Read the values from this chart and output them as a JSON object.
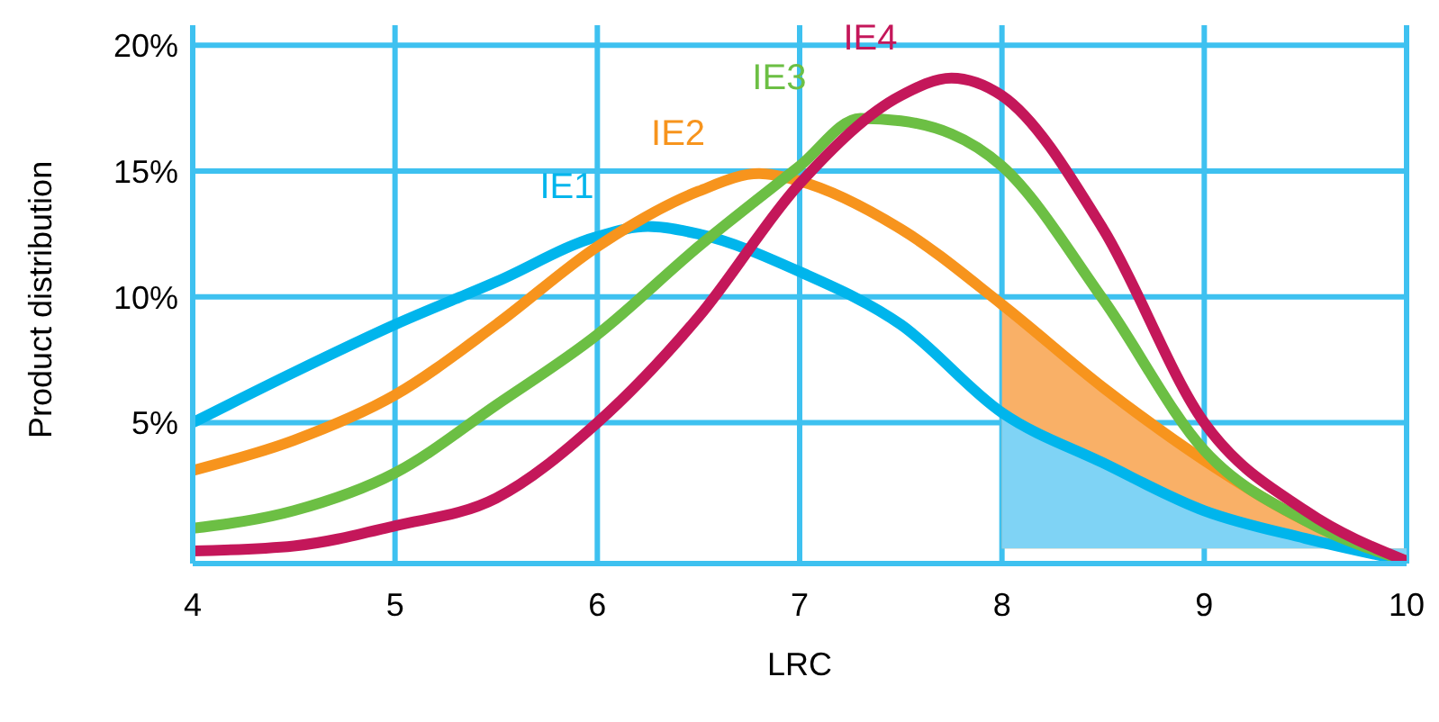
{
  "chart_data": {
    "type": "line",
    "xlabel": "LRC",
    "ylabel": "Product distribution",
    "xlim": [
      4,
      10
    ],
    "xticks": [
      4,
      5,
      6,
      7,
      8,
      9,
      10
    ],
    "ylim": [
      -0.6,
      20.8
    ],
    "yticks": [
      {
        "value": 5,
        "label": "5%"
      },
      {
        "value": 10,
        "label": "10%"
      },
      {
        "value": 15,
        "label": "15%"
      },
      {
        "value": 20,
        "label": "20%"
      }
    ],
    "grid": true,
    "legend": false,
    "marker": "none",
    "line_style": "solid",
    "series": [
      {
        "type": "area",
        "color": "#f9b067",
        "x": [
          8,
          8.5,
          9,
          9.5,
          10
        ],
        "values": [
          9.7,
          6.4,
          3.5,
          1.1,
          -0.5
        ]
      },
      {
        "type": "area",
        "color": "#7fd3f5",
        "x": [
          8,
          8.5,
          9,
          9.5,
          10
        ],
        "values": [
          5.4,
          3.4,
          1.5,
          0.4,
          -0.5
        ]
      },
      {
        "name": "IE1",
        "color": "#00b5ec",
        "x": [
          4,
          4.5,
          5,
          5.5,
          6,
          6.25,
          6.5,
          7,
          7.5,
          8,
          8.5,
          9,
          9.5,
          10
        ],
        "values": [
          5.0,
          7.0,
          8.9,
          10.6,
          12.4,
          12.8,
          12.5,
          11.0,
          8.9,
          5.4,
          3.4,
          1.5,
          0.4,
          -0.5
        ]
      },
      {
        "name": "IE2",
        "color": "#f7941d",
        "x": [
          4,
          4.5,
          5,
          5.5,
          6,
          6.5,
          6.8,
          7,
          7.5,
          8,
          8.5,
          9,
          9.5,
          10
        ],
        "values": [
          3.1,
          4.3,
          6.1,
          8.9,
          12.0,
          14.2,
          14.9,
          14.6,
          12.7,
          9.7,
          6.4,
          3.5,
          1.1,
          -0.5
        ]
      },
      {
        "name": "IE3",
        "color": "#6cbf44",
        "x": [
          4,
          4.5,
          5,
          5.5,
          6,
          6.5,
          7,
          7.3,
          7.5,
          8,
          8.5,
          9,
          9.5,
          10
        ],
        "values": [
          0.8,
          1.5,
          3.0,
          5.7,
          8.5,
          12.0,
          15.2,
          17.1,
          17.0,
          15.2,
          9.9,
          3.9,
          1.1,
          -0.5
        ]
      },
      {
        "name": "IE4",
        "color": "#c4175a",
        "x": [
          4,
          4.5,
          5,
          5.5,
          6,
          6.5,
          7,
          7.5,
          7.75,
          8,
          8.5,
          9,
          9.5,
          10
        ],
        "values": [
          -0.1,
          0.1,
          0.9,
          2.0,
          5.0,
          9.2,
          14.5,
          18.0,
          18.7,
          18.0,
          12.7,
          5.0,
          1.5,
          -0.5
        ]
      }
    ]
  }
}
